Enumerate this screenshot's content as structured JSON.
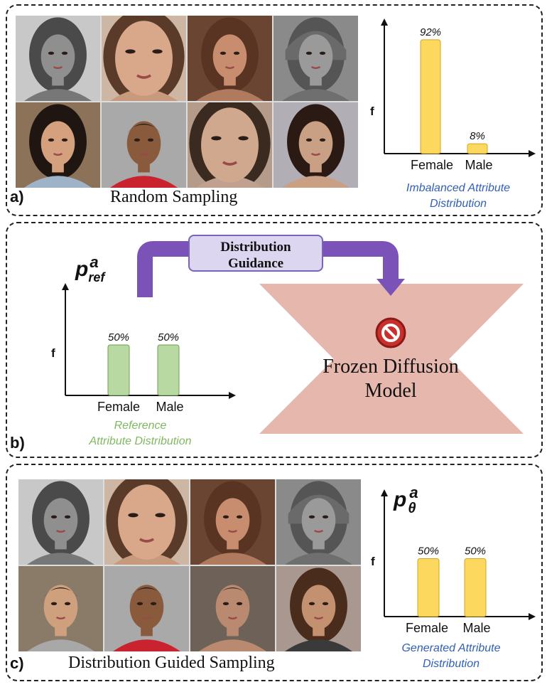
{
  "panel_a": {
    "letter": "a)",
    "title": "Random Sampling",
    "faces": [
      {
        "tone": "#8f8f8f",
        "hair": "#4a4a4a",
        "bg": "#c8c8c8",
        "shirt": "#777777",
        "kind": "female-gray"
      },
      {
        "tone": "#d9a88a",
        "hair": "#5a3a28",
        "bg": "#cdb6a3",
        "shirt": "#c89a7d",
        "kind": "female-close"
      },
      {
        "tone": "#c88d6e",
        "hair": "#5a3422",
        "bg": "#6a4632",
        "shirt": "#b07a5e",
        "kind": "female"
      },
      {
        "tone": "#9a9a9a",
        "hair": "#555555",
        "bg": "#8a8a8a",
        "shirt": "#6f6f6f",
        "kind": "female-hat"
      },
      {
        "tone": "#d4a07d",
        "hair": "#1f1612",
        "bg": "#8c7258",
        "shirt": "#9fb3c8",
        "kind": "female"
      },
      {
        "tone": "#8a5a3d",
        "hair": "#151515",
        "bg": "#a9a9a9",
        "shirt": "#c8232f",
        "kind": "male"
      },
      {
        "tone": "#cfa88e",
        "hair": "#3a2a20",
        "bg": "#b59c8a",
        "shirt": "#c0a090",
        "kind": "female-close"
      },
      {
        "tone": "#caa085",
        "hair": "#2b1a14",
        "bg": "#b2aeb6",
        "shirt": "#caa085",
        "kind": "female"
      }
    ],
    "chart_data": {
      "type": "bar",
      "categories": [
        "Female",
        "Male"
      ],
      "values": [
        92,
        8
      ],
      "value_labels": [
        "92%",
        "8%"
      ],
      "ylabel": "f",
      "ylim": [
        0,
        100
      ],
      "color": "#fdd85e",
      "caption": [
        "Imbalanced  Attribute",
        "Distribution"
      ]
    }
  },
  "panel_b": {
    "letter": "b)",
    "guidance": [
      "Distribution",
      "Guidance"
    ],
    "model": [
      "Frozen Diffusion",
      "Model"
    ],
    "pref_base": "p",
    "pref_sup": "a",
    "pref_sub": "ref",
    "arrow_color": "#7b52b8",
    "model_color": "#e6b7ad",
    "chart_data": {
      "type": "bar",
      "categories": [
        "Female",
        "Male"
      ],
      "values": [
        50,
        50
      ],
      "value_labels": [
        "50%",
        "50%"
      ],
      "ylabel": "f",
      "ylim": [
        0,
        100
      ],
      "color": "#b9d9a3",
      "caption": [
        "Reference",
        "Attribute Distribution"
      ]
    }
  },
  "panel_c": {
    "letter": "c)",
    "title": "Distribution Guided Sampling",
    "ptheta_base": "p",
    "ptheta_sup": "a",
    "ptheta_sub": "θ",
    "faces": [
      {
        "tone": "#8f8f8f",
        "hair": "#4a4a4a",
        "bg": "#c8c8c8",
        "shirt": "#777777",
        "kind": "female-gray"
      },
      {
        "tone": "#d9a88a",
        "hair": "#5a3a28",
        "bg": "#cdb6a3",
        "shirt": "#c89a7d",
        "kind": "female-close"
      },
      {
        "tone": "#c88d6e",
        "hair": "#5a3422",
        "bg": "#6a4632",
        "shirt": "#b07a5e",
        "kind": "female"
      },
      {
        "tone": "#9a9a9a",
        "hair": "#555555",
        "bg": "#8a8a8a",
        "shirt": "#6f6f6f",
        "kind": "female-hat"
      },
      {
        "tone": "#cfa07e",
        "hair": "#1a1410",
        "bg": "#8a7a68",
        "shirt": "#a8a8a8",
        "kind": "male"
      },
      {
        "tone": "#8a5a3d",
        "hair": "#151515",
        "bg": "#a9a9a9",
        "shirt": "#c8232f",
        "kind": "male"
      },
      {
        "tone": "#b98a70",
        "hair": "#3a2a20",
        "bg": "#6e6258",
        "shirt": "#b98a70",
        "kind": "male"
      },
      {
        "tone": "#c39070",
        "hair": "#4a2c1c",
        "bg": "#a89890",
        "shirt": "#3a3a3a",
        "kind": "male-long"
      }
    ],
    "chart_data": {
      "type": "bar",
      "categories": [
        "Female",
        "Male"
      ],
      "values": [
        50,
        50
      ],
      "value_labels": [
        "50%",
        "50%"
      ],
      "ylabel": "f",
      "ylim": [
        0,
        100
      ],
      "color": "#fdd85e",
      "caption": [
        "Generated Attribute",
        "Distribution"
      ]
    }
  }
}
